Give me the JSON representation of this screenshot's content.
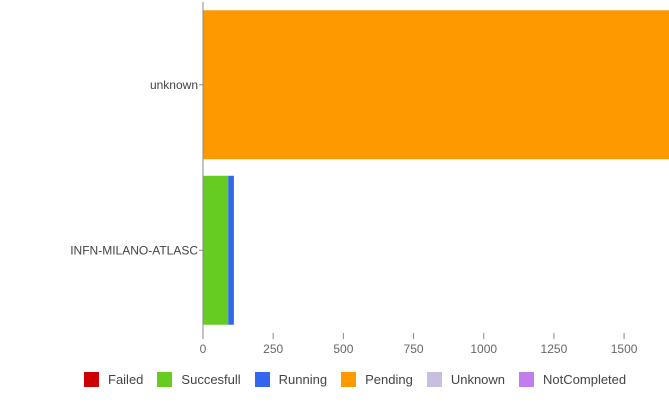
{
  "chart_data": {
    "type": "bar",
    "orientation": "horizontal",
    "stacked": true,
    "categories": [
      "unknown",
      "INFN-MILANO-ATLASC"
    ],
    "series": [
      {
        "name": "Failed",
        "color": "#cc0000",
        "values": [
          0,
          0
        ]
      },
      {
        "name": "Succesfull",
        "color": "#66cc22",
        "values": [
          0,
          90
        ]
      },
      {
        "name": "Running",
        "color": "#3366ee",
        "values": [
          0,
          20
        ]
      },
      {
        "name": "Pending",
        "color": "#ff9900",
        "values": [
          1660,
          0
        ]
      },
      {
        "name": "Unknown",
        "color": "#c8bee0",
        "values": [
          0,
          0
        ]
      },
      {
        "name": "NotCompleted",
        "color": "#c27ded",
        "values": [
          0,
          0
        ]
      }
    ],
    "xticks": [
      "0",
      "250",
      "500",
      "750",
      "1000",
      "1250",
      "1500"
    ],
    "xlim": [
      0,
      1660
    ],
    "legend_position": "bottom"
  }
}
